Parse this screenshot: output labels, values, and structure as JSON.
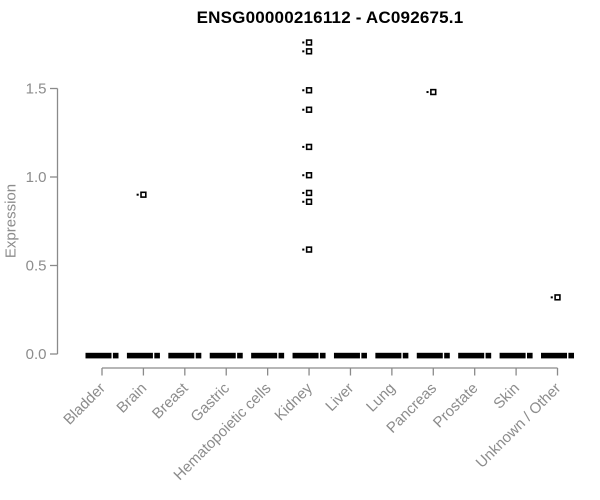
{
  "chart_data": {
    "type": "scatter",
    "title": "ENSG00000216112 - AC092675.1",
    "xlabel": "",
    "ylabel": "Expression",
    "ytick_labels": [
      "0.0",
      "0.5",
      "1.0",
      "1.5"
    ],
    "ytick_values": [
      0.0,
      0.5,
      1.0,
      1.5
    ],
    "ylim": [
      0,
      1.8
    ],
    "grid": false,
    "legend": false,
    "marker": "open-square",
    "categories": [
      "Bladder",
      "Brain",
      "Breast",
      "Gastric",
      "Hematopoietic cells",
      "Kidney",
      "Liver",
      "Lung",
      "Pancreas",
      "Prostate",
      "Skin",
      "Unknown / Other"
    ],
    "series": [
      {
        "category": "Bladder",
        "zero_cluster": true,
        "outliers": []
      },
      {
        "category": "Brain",
        "zero_cluster": true,
        "outliers": [
          0.9
        ]
      },
      {
        "category": "Breast",
        "zero_cluster": true,
        "outliers": []
      },
      {
        "category": "Gastric",
        "zero_cluster": true,
        "outliers": []
      },
      {
        "category": "Hematopoietic cells",
        "zero_cluster": true,
        "outliers": []
      },
      {
        "category": "Kidney",
        "zero_cluster": true,
        "outliers": [
          1.76,
          1.71,
          1.49,
          1.38,
          1.17,
          1.01,
          0.91,
          0.86,
          0.59
        ]
      },
      {
        "category": "Liver",
        "zero_cluster": true,
        "outliers": []
      },
      {
        "category": "Lung",
        "zero_cluster": true,
        "outliers": []
      },
      {
        "category": "Pancreas",
        "zero_cluster": true,
        "outliers": [
          1.48
        ]
      },
      {
        "category": "Prostate",
        "zero_cluster": true,
        "outliers": []
      },
      {
        "category": "Skin",
        "zero_cluster": true,
        "outliers": []
      },
      {
        "category": "Unknown / Other",
        "zero_cluster": true,
        "outliers": [
          0.32
        ]
      }
    ],
    "colors": {
      "title": "#000000",
      "axis_text": "#8c8c8c",
      "axis_line": "#8a8a8a",
      "point": "#000000",
      "point_fill": "#ffffff",
      "background": "#ffffff"
    }
  }
}
